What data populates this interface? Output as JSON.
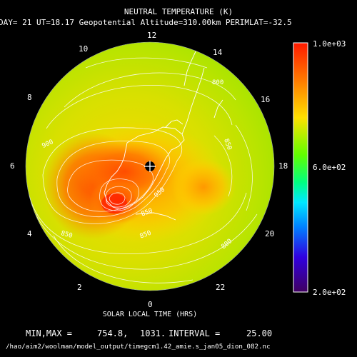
{
  "title": "NEUTRAL TEMPERATURE (K)",
  "subtitle": "DAY= 21 UT=18.17 Geopotential Altitude=310.00km PERIMLAT=-32.5",
  "xlabel": "SOLAR LOCAL TIME (HRS)",
  "minmax_label": "MIN,MAX =",
  "min_value": "754.8,",
  "max_value": "1031.",
  "interval_label": "INTERVAL =",
  "interval_value": "25.00",
  "file_path": "/hao/aim2/woolman/model_output/timegcm1.42_amie.s_jan05_dion_082.nc",
  "colorbar": {
    "max_label": "1.0e+03",
    "mid_label": "6.0e+02",
    "min_label": "2.0e+02"
  },
  "chart_data": {
    "type": "heatmap",
    "projection": "polar (southern hemisphere), perimeter latitude -32.5",
    "variable": "NEUTRAL TEMPERATURE (K)",
    "units": "K",
    "min": 754.8,
    "max": 1031,
    "contour_interval": 25,
    "colorbar_range": [
      200,
      1000
    ],
    "colorbar_ticks": [
      "1.0e+03",
      "6.0e+02",
      "2.0e+02"
    ],
    "local_time_labels": [
      "0",
      "2",
      "4",
      "6",
      "8",
      "10",
      "12",
      "14",
      "16",
      "18",
      "20",
      "22"
    ],
    "contour_labels": [
      "900",
      "950",
      "850",
      "800",
      "850",
      "850",
      "800",
      "850"
    ],
    "hot_spot_local_time_approx": 4.5,
    "pole_marker": "geographic south pole"
  }
}
